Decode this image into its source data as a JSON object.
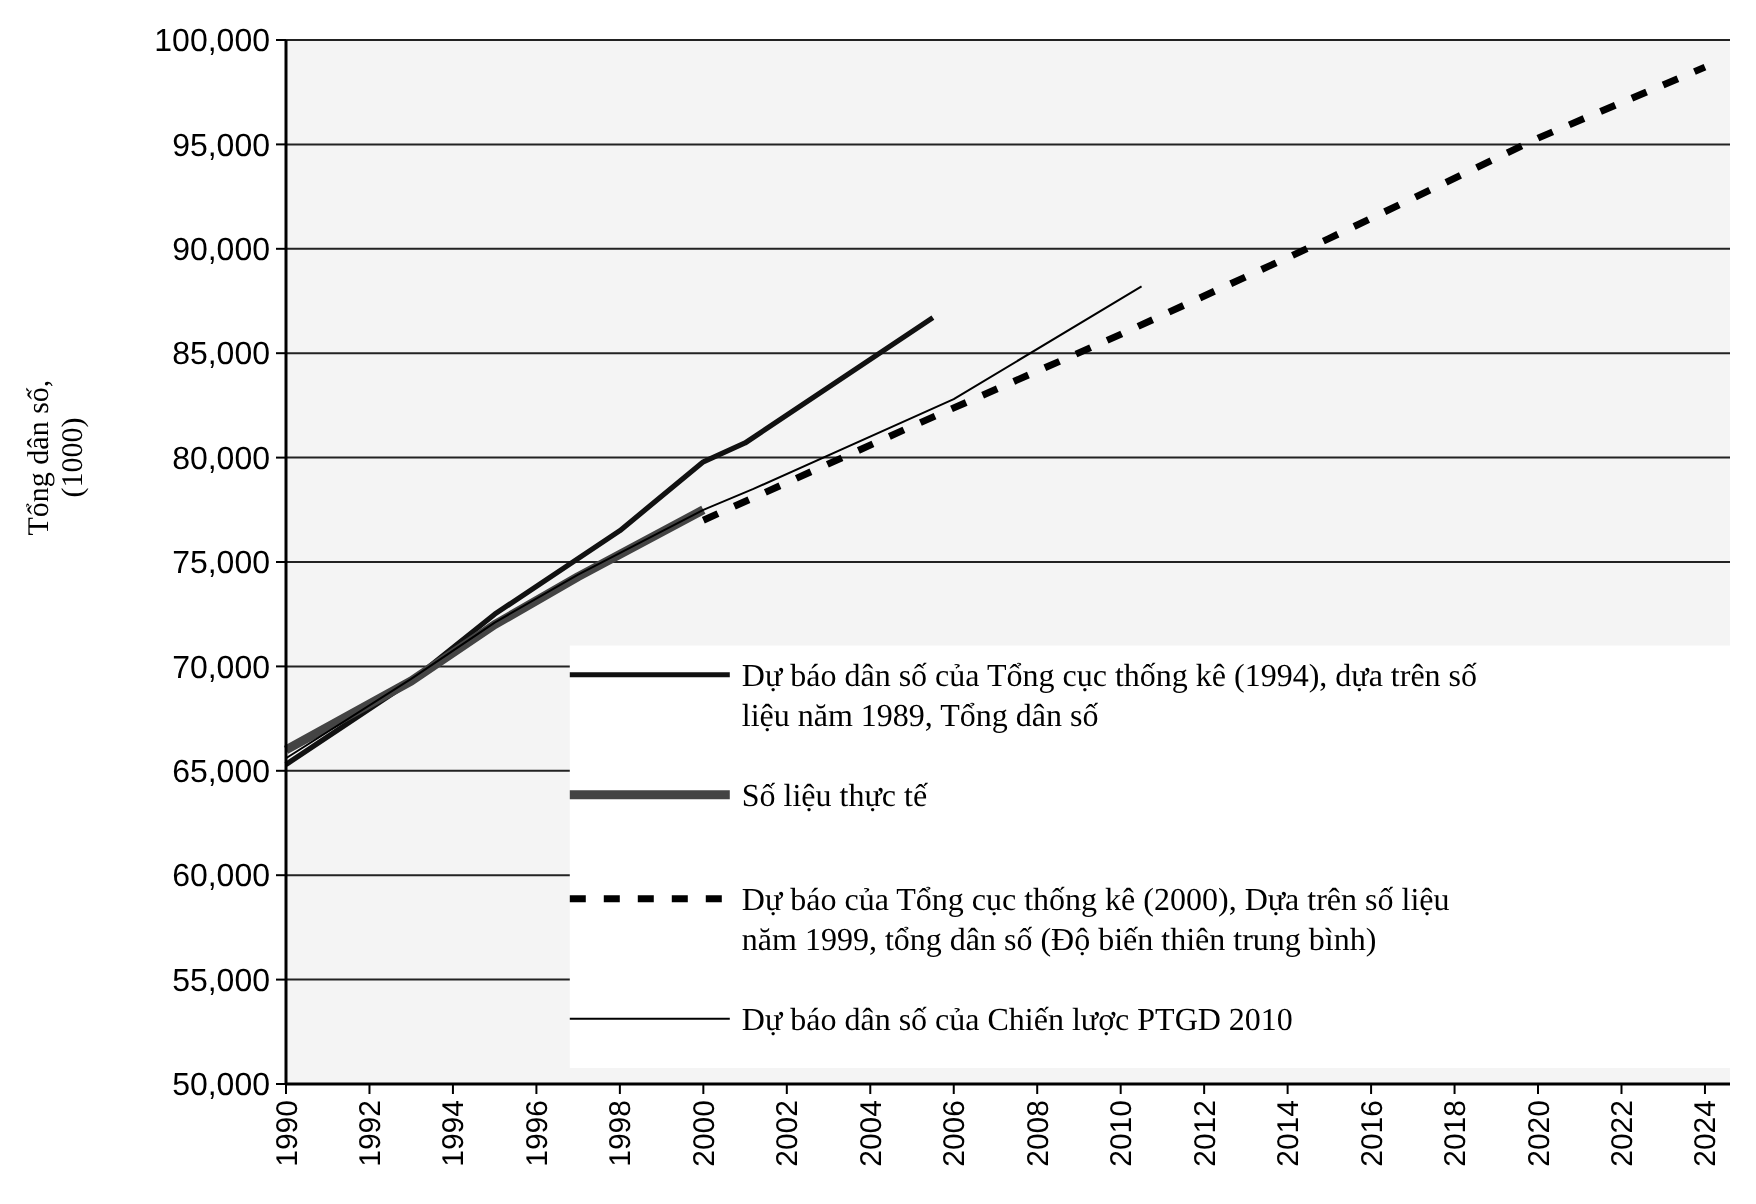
{
  "chart_data": {
    "type": "line",
    "ylabel": "Tổng dân số, (1000)",
    "xlim": [
      1990,
      2024.6
    ],
    "xticks": [
      1990,
      1992,
      1994,
      1996,
      1998,
      2000,
      2002,
      2004,
      2006,
      2008,
      2010,
      2012,
      2014,
      2016,
      2018,
      2020,
      2022,
      2024
    ],
    "ylim": [
      50000,
      100000
    ],
    "yticks": [
      {
        "value": 50000,
        "label": "50,000"
      },
      {
        "value": 55000,
        "label": "55,000"
      },
      {
        "value": 60000,
        "label": "60,000"
      },
      {
        "value": 65000,
        "label": "65,000"
      },
      {
        "value": 70000,
        "label": "70,000"
      },
      {
        "value": 75000,
        "label": "75,000"
      },
      {
        "value": 80000,
        "label": "80,000"
      },
      {
        "value": 85000,
        "label": "85,000"
      },
      {
        "value": 90000,
        "label": "90,000"
      },
      {
        "value": 95000,
        "label": "95,000"
      },
      {
        "value": 100000,
        "label": "100,000"
      }
    ],
    "grid": "y",
    "legend": "bottom right",
    "series": [
      {
        "name": "Dự báo dân số của Tổng cục thống kê (1994), dựa trên số liệu năm 1989, Tổng dân số",
        "color": "#111111",
        "line_style": "solid",
        "x": [
          1990,
          1993,
          1995,
          1998,
          2000,
          2001,
          2005.5
        ],
        "values": [
          65300,
          69300,
          72500,
          76500,
          79800,
          80700,
          86700
        ]
      },
      {
        "name": "Số liệu thực tế",
        "color": "#444444",
        "line_style": "solid",
        "x": [
          1990,
          1993,
          1995,
          1997,
          2000
        ],
        "values": [
          66000,
          69300,
          72000,
          74300,
          77500
        ]
      },
      {
        "name": "Dự báo của Tổng cục thống kê  (2000), Dựa trên số liệu năm 1999, tổng dân số (Độ biến thiên trung bình)",
        "color": "#000000",
        "line_style": "dashed",
        "x": [
          2000,
          2005,
          2010,
          2015,
          2020,
          2024
        ],
        "values": [
          77000,
          81500,
          85900,
          90500,
          95300,
          98700
        ]
      },
      {
        "name": "Dự báo dân số của Chiến lược PTGD 2010",
        "color": "#000000",
        "line_style": "solid",
        "x": [
          1990,
          1993,
          1995,
          1997,
          2000,
          2001.2,
          2006,
          2010.5
        ],
        "values": [
          65600,
          69400,
          72100,
          74400,
          77500,
          78500,
          82800,
          88200
        ]
      }
    ]
  }
}
